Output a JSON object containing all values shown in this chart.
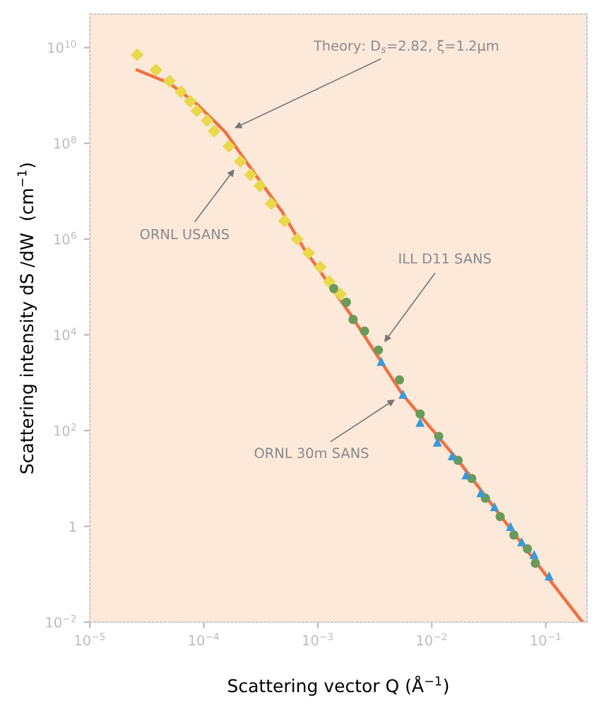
{
  "chart_data": {
    "type": "scatter",
    "xlabel": "Scattering vector Q (Å$^{−1}$)",
    "ylabel": "Scattering intensity dS /dW  (cm$^{−1}$)",
    "log": "xy",
    "grid": false,
    "legend": false,
    "xlim": [
      1e-05,
      0.23
    ],
    "ylim": [
      0.01,
      50000000000.0
    ],
    "xticks": [
      {
        "value": 1e-05,
        "label": "10$^{−5}$"
      },
      {
        "value": 0.0001,
        "label": "10$^{−4}$"
      },
      {
        "value": 0.001,
        "label": "10$^{−3}$"
      },
      {
        "value": 0.01,
        "label": "10$^{−2}$"
      },
      {
        "value": 0.1,
        "label": "10$^{−1}$"
      }
    ],
    "yticks": [
      {
        "value": 0.01,
        "label": "10$^{−2}$"
      },
      1,
      {
        "value": 100,
        "label": "10$^{2}$"
      },
      {
        "value": 10000.0,
        "label": "10$^{4}$"
      },
      {
        "value": 1000000.0,
        "label": "10$^{6}$"
      },
      {
        "value": 100000000.0,
        "label": "10$^{8}$"
      },
      {
        "value": 10000000000.0,
        "label": "10$^{10}$"
      }
    ],
    "series": [
      {
        "type": "line",
        "color": "#f07040",
        "marker": "none",
        "line_style": "solid",
        "x": [
          2.6e-05,
          5e-05,
          8.7e-05,
          0.000155,
          0.000245,
          0.00048,
          0.00076,
          0.00195,
          0.0055,
          0.017,
          0.091,
          0.21
        ],
        "values": [
          3400000000.0,
          1800000000.0,
          660000000.0,
          170000000.0,
          36000000.0,
          3900000.0,
          620000.0,
          26000.0,
          580,
          24,
          0.13,
          0.01
        ]
      },
      {
        "color": "#e8d84a",
        "marker": "diamond",
        "x": [
          2.6e-05,
          3.8e-05,
          5e-05,
          6.3e-05,
          7.6e-05,
          8.7e-05,
          0.000107,
          0.000123,
          0.000166,
          0.000209,
          0.000257,
          0.00031,
          0.00039,
          0.00051,
          0.00066,
          0.00083,
          0.00105,
          0.00126,
          0.00158
        ],
        "values": [
          7100000000.0,
          3400000000.0,
          2000000000.0,
          1200000000.0,
          760000000.0,
          480000000.0,
          300000000.0,
          180000000.0,
          87000000.0,
          42000000.0,
          22000000.0,
          13000000.0,
          5500000.0,
          2400000.0,
          1000000.0,
          510000.0,
          260000.0,
          130000.0,
          71000.0
        ]
      },
      {
        "color": "#6a9a5a",
        "marker": "circle",
        "x": [
          0.00138,
          0.00178,
          0.00204,
          0.00257,
          0.0034,
          0.0052,
          0.0079,
          0.0115,
          0.017,
          0.0224,
          0.0295,
          0.0398,
          0.0525,
          0.069,
          0.081
        ],
        "values": [
          93000.0,
          48000.0,
          21000.0,
          12000.0,
          4800.0,
          1150,
          224,
          76,
          24,
          10,
          3.9,
          1.6,
          0.66,
          0.34,
          0.17
        ]
      },
      {
        "color": "#3a9ad8",
        "marker": "triangle",
        "x": [
          0.0036,
          0.0056,
          0.0079,
          0.0112,
          0.0151,
          0.02,
          0.027,
          0.0355,
          0.049,
          0.0615,
          0.079,
          0.107
        ],
        "values": [
          2800,
          580,
          150,
          58,
          30,
          12,
          5.1,
          2.6,
          1.0,
          0.48,
          0.26,
          0.093
        ]
      }
    ],
    "annotations": [
      {
        "text": "Theory: D$_{s}$=2.82, ξ=1.2μm",
        "x": 0.000155,
        "y": 170000000.0
      },
      {
        "text": "ORNL USANS",
        "x": 0.000209,
        "y": 42000000.0
      },
      {
        "text": "ILL D11 SANS",
        "x": 0.0034,
        "y": 4800.0
      },
      {
        "text": "ORNL 30m SANS",
        "x": 0.0056,
        "y": 580
      }
    ]
  }
}
